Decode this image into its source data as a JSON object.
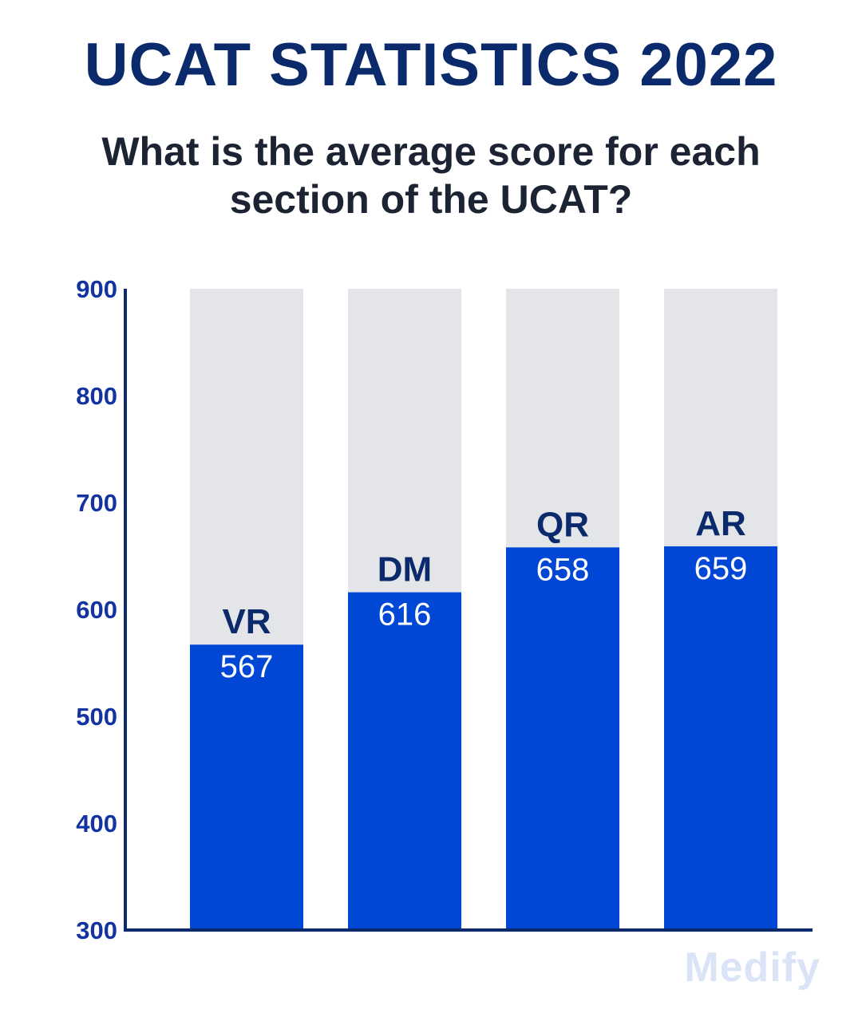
{
  "title": "UCAT STATISTICS 2022",
  "subtitle": "What is the average score for each section of the UCAT?",
  "watermark": "Medify",
  "colors": {
    "bar_fill": "#0047d6",
    "bar_track": "#e4e5e8",
    "axis": "#0b2a6b",
    "tick_text": "#1233a0",
    "category_text": "#0b2a6b",
    "value_text": "#ffffff"
  },
  "chart_data": {
    "type": "bar",
    "categories": [
      "VR",
      "DM",
      "QR",
      "AR"
    ],
    "values": [
      567,
      616,
      658,
      659
    ],
    "max_score": 900,
    "title": "UCAT STATISTICS 2022",
    "subtitle": "What is the average score for each section of the UCAT?",
    "xlabel": "",
    "ylabel": "",
    "ylim": [
      300,
      900
    ],
    "yticks": [
      900,
      800,
      700,
      600,
      500,
      400,
      300
    ],
    "grid": false,
    "legend": "none"
  }
}
